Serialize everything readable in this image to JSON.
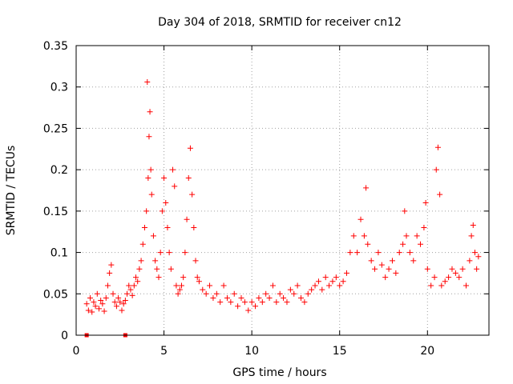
{
  "chart_data": {
    "type": "scatter",
    "title": "Day 304 of 2018, SRMTID for receiver cn12",
    "xlabel": "GPS time / hours",
    "ylabel": "SRMTID / TECUs",
    "xlim": [
      0,
      23.5
    ],
    "ylim": [
      0,
      0.35
    ],
    "grid": true,
    "x_ticks": [
      0,
      5,
      10,
      15,
      20
    ],
    "x_tick_labels": [
      "0",
      "5",
      "10",
      "15",
      "20"
    ],
    "y_ticks": [
      0,
      0.05,
      0.1,
      0.15,
      0.2,
      0.25,
      0.3,
      0.35
    ],
    "y_tick_labels": [
      "0",
      "0.05",
      "0.1",
      "0.15",
      "0.2",
      "0.25",
      "0.3",
      "0.35"
    ],
    "marker": "plus",
    "color": "#ff0000",
    "zero_markers": [
      0.6,
      2.8
    ],
    "series": [
      {
        "name": "cn12",
        "points": [
          [
            0.6,
            0.038
          ],
          [
            0.7,
            0.03
          ],
          [
            0.8,
            0.045
          ],
          [
            0.9,
            0.028
          ],
          [
            1.0,
            0.04
          ],
          [
            1.1,
            0.035
          ],
          [
            1.2,
            0.05
          ],
          [
            1.3,
            0.032
          ],
          [
            1.4,
            0.042
          ],
          [
            1.5,
            0.038
          ],
          [
            1.6,
            0.029
          ],
          [
            1.7,
            0.045
          ],
          [
            1.8,
            0.06
          ],
          [
            1.9,
            0.075
          ],
          [
            2.0,
            0.085
          ],
          [
            2.1,
            0.05
          ],
          [
            2.2,
            0.04
          ],
          [
            2.3,
            0.035
          ],
          [
            2.4,
            0.045
          ],
          [
            2.5,
            0.04
          ],
          [
            2.6,
            0.03
          ],
          [
            2.7,
            0.038
          ],
          [
            2.8,
            0.042
          ],
          [
            2.9,
            0.05
          ],
          [
            3.0,
            0.06
          ],
          [
            3.1,
            0.055
          ],
          [
            3.2,
            0.048
          ],
          [
            3.3,
            0.06
          ],
          [
            3.4,
            0.07
          ],
          [
            3.5,
            0.065
          ],
          [
            3.6,
            0.08
          ],
          [
            3.7,
            0.09
          ],
          [
            3.8,
            0.11
          ],
          [
            3.9,
            0.13
          ],
          [
            4.0,
            0.15
          ],
          [
            4.1,
            0.19
          ],
          [
            4.15,
            0.24
          ],
          [
            4.2,
            0.27
          ],
          [
            4.05,
            0.306
          ],
          [
            4.25,
            0.2
          ],
          [
            4.3,
            0.17
          ],
          [
            4.4,
            0.12
          ],
          [
            4.5,
            0.09
          ],
          [
            4.6,
            0.08
          ],
          [
            4.7,
            0.07
          ],
          [
            4.8,
            0.1
          ],
          [
            4.9,
            0.15
          ],
          [
            5.0,
            0.19
          ],
          [
            5.1,
            0.16
          ],
          [
            5.2,
            0.13
          ],
          [
            5.3,
            0.1
          ],
          [
            5.4,
            0.08
          ],
          [
            5.5,
            0.2
          ],
          [
            5.6,
            0.18
          ],
          [
            5.7,
            0.06
          ],
          [
            5.8,
            0.05
          ],
          [
            5.9,
            0.055
          ],
          [
            6.0,
            0.06
          ],
          [
            6.1,
            0.07
          ],
          [
            6.2,
            0.1
          ],
          [
            6.3,
            0.14
          ],
          [
            6.4,
            0.19
          ],
          [
            6.5,
            0.226
          ],
          [
            6.6,
            0.17
          ],
          [
            6.7,
            0.13
          ],
          [
            6.8,
            0.09
          ],
          [
            6.9,
            0.07
          ],
          [
            7.0,
            0.065
          ],
          [
            7.2,
            0.055
          ],
          [
            7.4,
            0.05
          ],
          [
            7.6,
            0.06
          ],
          [
            7.8,
            0.045
          ],
          [
            8.0,
            0.05
          ],
          [
            8.2,
            0.04
          ],
          [
            8.4,
            0.06
          ],
          [
            8.6,
            0.045
          ],
          [
            8.8,
            0.04
          ],
          [
            9.0,
            0.05
          ],
          [
            9.2,
            0.035
          ],
          [
            9.4,
            0.045
          ],
          [
            9.6,
            0.04
          ],
          [
            9.8,
            0.03
          ],
          [
            10.0,
            0.04
          ],
          [
            10.2,
            0.035
          ],
          [
            10.4,
            0.045
          ],
          [
            10.6,
            0.04
          ],
          [
            10.8,
            0.05
          ],
          [
            11.0,
            0.045
          ],
          [
            11.2,
            0.06
          ],
          [
            11.4,
            0.04
          ],
          [
            11.6,
            0.05
          ],
          [
            11.8,
            0.045
          ],
          [
            12.0,
            0.04
          ],
          [
            12.2,
            0.055
          ],
          [
            12.4,
            0.05
          ],
          [
            12.6,
            0.06
          ],
          [
            12.8,
            0.045
          ],
          [
            13.0,
            0.04
          ],
          [
            13.2,
            0.05
          ],
          [
            13.4,
            0.055
          ],
          [
            13.6,
            0.06
          ],
          [
            13.8,
            0.065
          ],
          [
            14.0,
            0.055
          ],
          [
            14.2,
            0.07
          ],
          [
            14.4,
            0.06
          ],
          [
            14.6,
            0.065
          ],
          [
            14.8,
            0.07
          ],
          [
            15.0,
            0.06
          ],
          [
            15.2,
            0.065
          ],
          [
            15.4,
            0.075
          ],
          [
            15.6,
            0.1
          ],
          [
            15.8,
            0.12
          ],
          [
            16.0,
            0.1
          ],
          [
            16.2,
            0.14
          ],
          [
            16.4,
            0.12
          ],
          [
            16.5,
            0.178
          ],
          [
            16.6,
            0.11
          ],
          [
            16.8,
            0.09
          ],
          [
            17.0,
            0.08
          ],
          [
            17.2,
            0.1
          ],
          [
            17.4,
            0.085
          ],
          [
            17.6,
            0.07
          ],
          [
            17.8,
            0.08
          ],
          [
            18.0,
            0.09
          ],
          [
            18.2,
            0.075
          ],
          [
            18.4,
            0.1
          ],
          [
            18.6,
            0.11
          ],
          [
            18.7,
            0.15
          ],
          [
            18.8,
            0.12
          ],
          [
            19.0,
            0.1
          ],
          [
            19.2,
            0.09
          ],
          [
            19.4,
            0.12
          ],
          [
            19.6,
            0.11
          ],
          [
            19.8,
            0.13
          ],
          [
            19.9,
            0.16
          ],
          [
            20.0,
            0.08
          ],
          [
            20.2,
            0.06
          ],
          [
            20.4,
            0.07
          ],
          [
            20.5,
            0.2
          ],
          [
            20.6,
            0.227
          ],
          [
            20.7,
            0.17
          ],
          [
            20.8,
            0.06
          ],
          [
            21.0,
            0.065
          ],
          [
            21.2,
            0.07
          ],
          [
            21.4,
            0.08
          ],
          [
            21.6,
            0.075
          ],
          [
            21.8,
            0.07
          ],
          [
            22.0,
            0.08
          ],
          [
            22.2,
            0.06
          ],
          [
            22.4,
            0.09
          ],
          [
            22.5,
            0.12
          ],
          [
            22.6,
            0.133
          ],
          [
            22.7,
            0.1
          ],
          [
            22.8,
            0.08
          ],
          [
            22.9,
            0.095
          ]
        ]
      }
    ]
  }
}
